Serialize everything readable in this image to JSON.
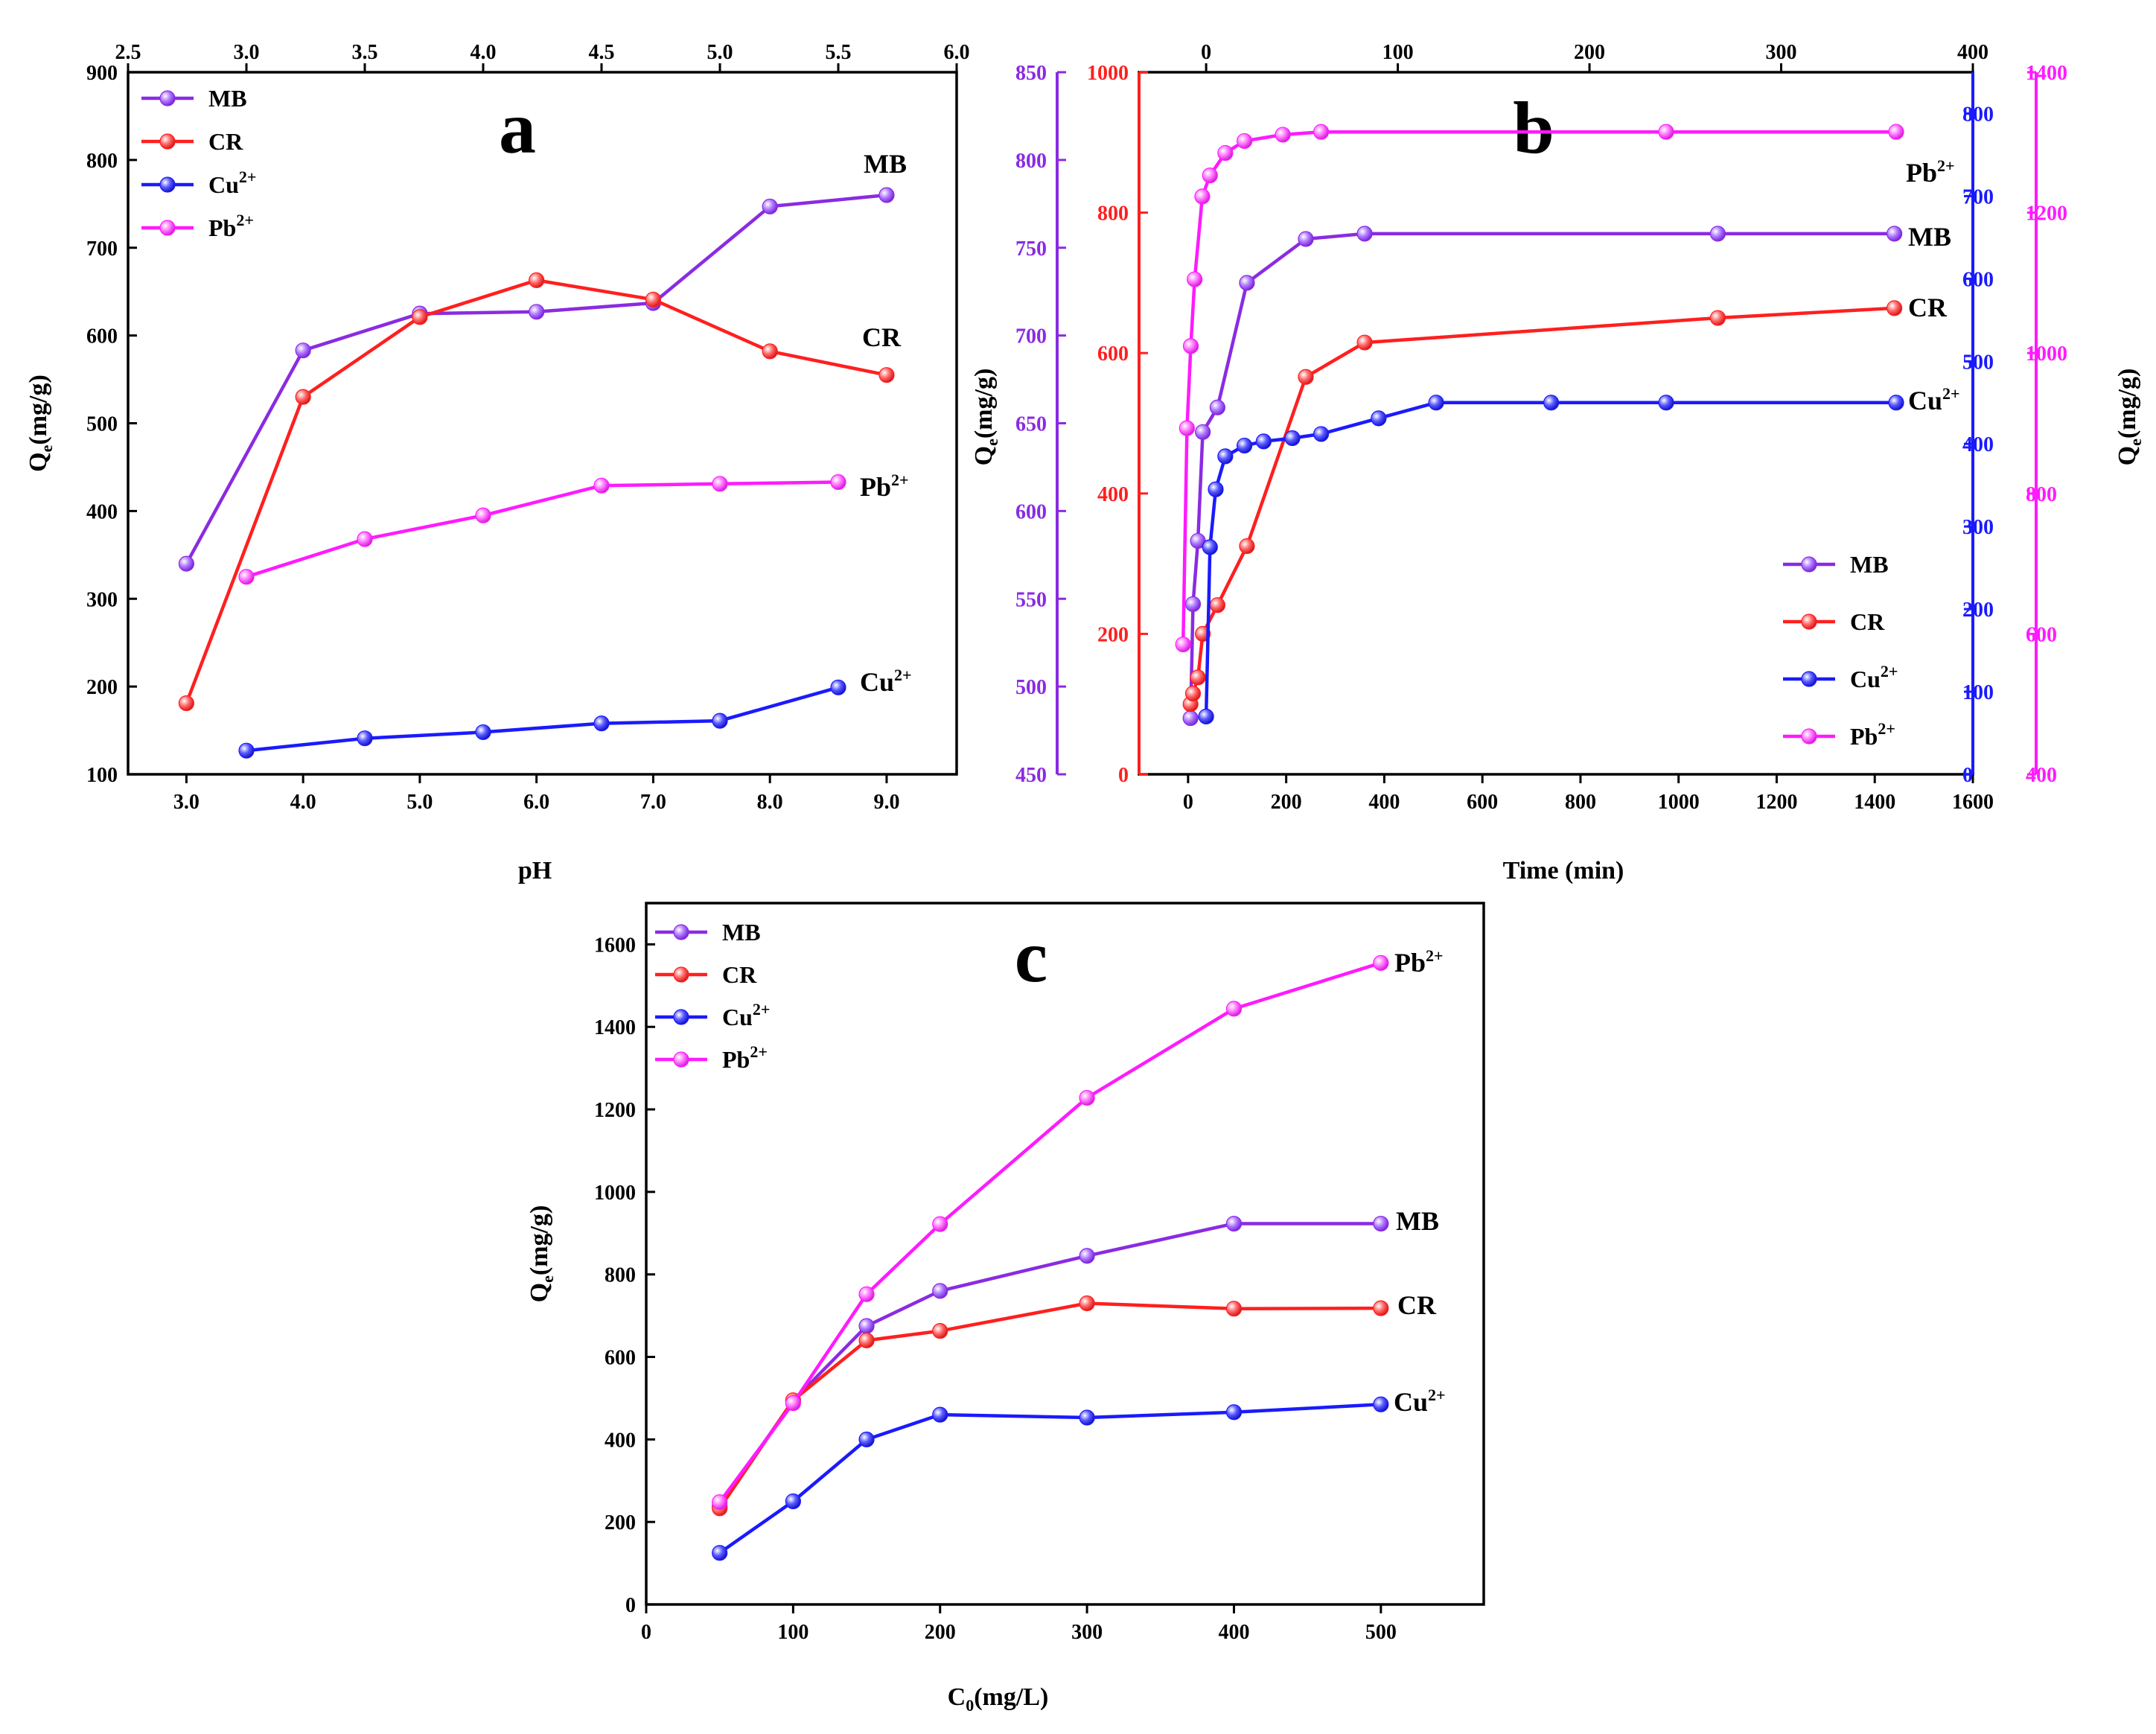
{
  "colors": {
    "MB": "#8a2be2",
    "CR": "#ff1f1f",
    "Cu": "#1a1aff",
    "Pb": "#ff1aff"
  },
  "chart_data": [
    {
      "panel": "a",
      "type": "line",
      "xlabel": "pH",
      "ylabel": "Q",
      "ylabel_sub": "e",
      "ylabel_unit": "(mg/g)",
      "xlim": [
        2.5,
        9.6
      ],
      "ylim": [
        100,
        900
      ],
      "xticks": [
        "3.0",
        "4.0",
        "5.0",
        "6.0",
        "7.0",
        "8.0",
        "9.0"
      ],
      "yticks": [
        "100",
        "200",
        "300",
        "400",
        "500",
        "600",
        "700",
        "800",
        "900"
      ],
      "top_axis": {
        "lim": [
          2.5,
          6.0
        ],
        "ticks": [
          "2.5",
          "3.0",
          "3.5",
          "4.0",
          "4.5",
          "5.0",
          "5.5",
          "6.0"
        ]
      },
      "legend": {
        "position": "top-left",
        "entries": [
          {
            "key": "MB",
            "label": "MB",
            "sup": ""
          },
          {
            "key": "CR",
            "label": "CR",
            "sup": ""
          },
          {
            "key": "Cu",
            "label": "Cu",
            "sup": "2+"
          },
          {
            "key": "Pb",
            "label": "Pb",
            "sup": "2+"
          }
        ]
      },
      "series": [
        {
          "key": "MB",
          "name": "MB",
          "sup": "",
          "axis": "bottom",
          "x": [
            3,
            4,
            5,
            6,
            7,
            8,
            9
          ],
          "y": [
            340,
            583,
            625,
            627,
            637,
            747,
            760
          ]
        },
        {
          "key": "CR",
          "name": "CR",
          "sup": "",
          "axis": "bottom",
          "x": [
            3,
            4,
            5,
            6,
            7,
            8,
            9
          ],
          "y": [
            181,
            530,
            621,
            663,
            641,
            582,
            555
          ]
        },
        {
          "key": "Cu",
          "name": "Cu",
          "sup": "2+",
          "axis": "top",
          "x": [
            3,
            3.5,
            4,
            4.5,
            5,
            5.5
          ],
          "y": [
            127,
            141,
            148,
            158,
            161,
            199
          ]
        },
        {
          "key": "Pb",
          "name": "Pb",
          "sup": "2+",
          "axis": "top",
          "x": [
            3,
            3.5,
            4,
            4.5,
            5,
            5.5
          ],
          "y": [
            325,
            368,
            395,
            429,
            431,
            433
          ]
        }
      ]
    },
    {
      "panel": "b",
      "type": "line",
      "xlabel": "Time (min)",
      "ylabel": "Q",
      "ylabel_sub": "e",
      "ylabel_unit": "(mg/g)",
      "xlim": [
        -100,
        1600
      ],
      "xticks": [
        "0",
        "200",
        "400",
        "600",
        "800",
        "1000",
        "1200",
        "1400",
        "1600"
      ],
      "top_axis": {
        "lim": [
          -35,
          400
        ],
        "ticks": [
          "0",
          "100",
          "200",
          "300",
          "400"
        ]
      },
      "y_axes": {
        "MB": {
          "lim": [
            450,
            850
          ],
          "ticks": [
            "450",
            "500",
            "550",
            "600",
            "650",
            "700",
            "750",
            "800",
            "850"
          ]
        },
        "CR": {
          "lim": [
            0,
            1000
          ],
          "ticks": [
            "0",
            "200",
            "400",
            "600",
            "800",
            "1000"
          ]
        },
        "Cu": {
          "lim": [
            0,
            850
          ],
          "ticks": [
            "0",
            "100",
            "200",
            "300",
            "400",
            "500",
            "600",
            "700",
            "800"
          ]
        },
        "Pb": {
          "lim": [
            400,
            1400
          ],
          "ticks": [
            "400",
            "600",
            "800",
            "1000",
            "1200",
            "1400"
          ]
        }
      },
      "legend": {
        "position": "bottom-right",
        "entries": [
          {
            "key": "MB",
            "label": "MB",
            "sup": ""
          },
          {
            "key": "CR",
            "label": "CR",
            "sup": ""
          },
          {
            "key": "Cu",
            "label": "Cu",
            "sup": "2+"
          },
          {
            "key": "Pb",
            "label": "Pb",
            "sup": "2+"
          }
        ]
      },
      "series": [
        {
          "key": "MB",
          "name": "MB",
          "sup": "",
          "axis": "bottom",
          "x": [
            5,
            10,
            20,
            30,
            60,
            120,
            240,
            360,
            1080,
            1440
          ],
          "y": [
            482,
            547,
            583,
            645,
            659,
            730,
            755,
            758,
            758,
            758
          ]
        },
        {
          "key": "CR",
          "name": "CR",
          "sup": "",
          "axis": "bottom",
          "x": [
            5,
            10,
            20,
            30,
            60,
            120,
            240,
            360,
            1080,
            1440
          ],
          "y": [
            100,
            115,
            138,
            200,
            241,
            325,
            566,
            615,
            650,
            664
          ]
        },
        {
          "key": "Cu",
          "name": "Cu",
          "sup": "2+",
          "axis": "top",
          "x": [
            0,
            2,
            5,
            10,
            20,
            30,
            45,
            60,
            90,
            120,
            180,
            240,
            360
          ],
          "y": [
            70,
            275,
            345,
            385,
            398,
            403,
            407,
            412,
            431,
            450,
            450,
            450,
            450
          ]
        },
        {
          "key": "Pb",
          "name": "Pb",
          "sup": "2+",
          "axis": "top",
          "x": [
            -12,
            -10,
            -8,
            -6,
            -2,
            2,
            10,
            20,
            40,
            60,
            240,
            360
          ],
          "y": [
            585,
            893,
            1010,
            1105,
            1223,
            1253,
            1285,
            1302,
            1311,
            1315,
            1315,
            1315
          ]
        }
      ]
    },
    {
      "panel": "c",
      "type": "line",
      "xlabel": "C",
      "xlabel_sub": "0",
      "xlabel_unit": "(mg/L)",
      "ylabel": "Q",
      "ylabel_sub": "e",
      "ylabel_unit": "(mg/g)",
      "xlim": [
        0,
        570
      ],
      "ylim": [
        0,
        1700
      ],
      "xticks": [
        "0",
        "100",
        "200",
        "300",
        "400",
        "500"
      ],
      "yticks": [
        "0",
        "200",
        "400",
        "600",
        "800",
        "1000",
        "1200",
        "1400",
        "1600"
      ],
      "legend": {
        "position": "top-left",
        "entries": [
          {
            "key": "MB",
            "label": "MB",
            "sup": ""
          },
          {
            "key": "CR",
            "label": "CR",
            "sup": ""
          },
          {
            "key": "Cu",
            "label": "Cu",
            "sup": "2+"
          },
          {
            "key": "Pb",
            "label": "Pb",
            "sup": "2+"
          }
        ]
      },
      "series": [
        {
          "key": "MB",
          "name": "MB",
          "sup": "",
          "x": [
            50,
            100,
            150,
            200,
            300,
            400,
            500
          ],
          "y": [
            238,
            494,
            675,
            760,
            845,
            923,
            923
          ]
        },
        {
          "key": "CR",
          "name": "CR",
          "sup": "",
          "x": [
            50,
            100,
            150,
            200,
            300,
            400,
            500
          ],
          "y": [
            233,
            495,
            640,
            663,
            730,
            717,
            718
          ]
        },
        {
          "key": "Cu",
          "name": "Cu",
          "sup": "2+",
          "x": [
            50,
            100,
            150,
            200,
            300,
            400,
            500
          ],
          "y": [
            125,
            250,
            400,
            460,
            453,
            466,
            485
          ]
        },
        {
          "key": "Pb",
          "name": "Pb",
          "sup": "2+",
          "x": [
            50,
            100,
            150,
            200,
            300,
            400,
            500
          ],
          "y": [
            248,
            488,
            752,
            922,
            1228,
            1444,
            1555
          ]
        }
      ]
    }
  ]
}
